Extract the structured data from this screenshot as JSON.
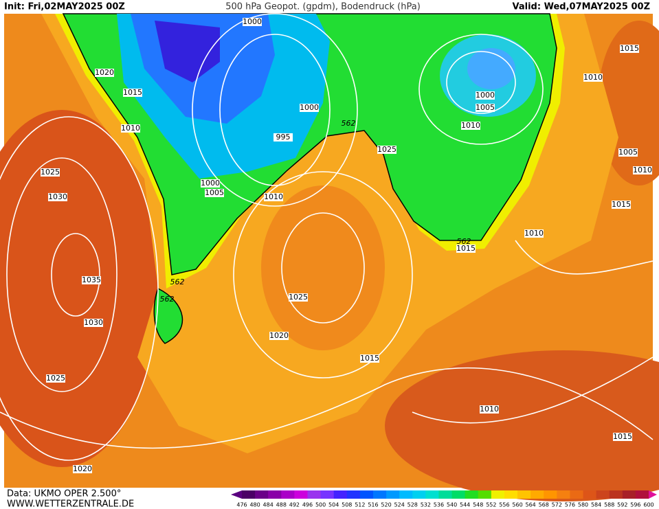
{
  "map": {
    "header": {
      "init": "Init: Fri,02MAY2025 00Z",
      "title": "500 hPa Geopot. (gpdm), Bodendruck (hPa)",
      "valid": "Valid: Wed,07MAY2025 00Z"
    },
    "footer": {
      "source": "Data: UKMO OPER 2.500°",
      "url": "WWW.WETTERZENTRALE.DE"
    },
    "contour_labels": [
      "1000",
      "1020",
      "1015",
      "1010",
      "1000",
      "995",
      "1025",
      "1030",
      "1000",
      "1005",
      "1010",
      "562",
      "1025",
      "1000",
      "1005",
      "1010",
      "1015",
      "1010",
      "1005",
      "1010",
      "1015",
      "1010",
      "562",
      "1015",
      "1035",
      "562",
      "562",
      "1025",
      "1030",
      "1020",
      "1015",
      "1025",
      "1010",
      "1015",
      "1020"
    ],
    "legend": {
      "levels": [
        476,
        480,
        484,
        488,
        492,
        496,
        500,
        504,
        508,
        512,
        516,
        520,
        524,
        528,
        532,
        536,
        540,
        544,
        548,
        552,
        556,
        560,
        564,
        568,
        572,
        576,
        580,
        584,
        588,
        592,
        596,
        600
      ],
      "colors": [
        "#5a0080",
        "#4b0066",
        "#6a0088",
        "#8a00a8",
        "#aa00c8",
        "#cc00dd",
        "#9a33ee",
        "#7733ff",
        "#4422ff",
        "#2233ff",
        "#0055ff",
        "#0077ff",
        "#0099ff",
        "#00bbff",
        "#00d0f0",
        "#00e0d0",
        "#00dd99",
        "#00dd66",
        "#22dd22",
        "#55dd00",
        "#f0f000",
        "#ffdd00",
        "#ffc400",
        "#ffaa00",
        "#ff9500",
        "#f58010",
        "#ea6a14",
        "#dd5518",
        "#cc441c",
        "#bb3320",
        "#a82028",
        "#b0103c",
        "#e0109a"
      ]
    }
  }
}
